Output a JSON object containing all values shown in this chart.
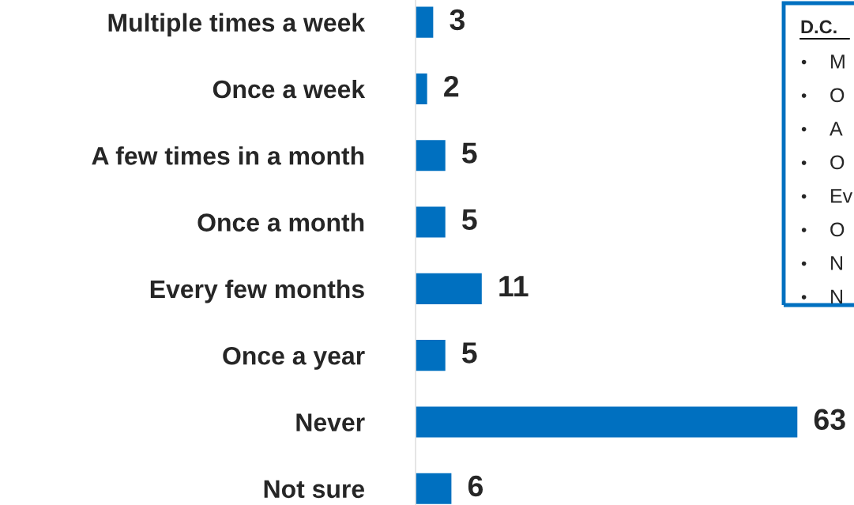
{
  "chart_data": {
    "type": "bar",
    "orientation": "horizontal",
    "data_labels": true,
    "color": "#0070c0",
    "categories": [
      "Multiple times a week",
      "Once a week",
      "A few times in a month",
      "Once a month",
      "Every few months",
      "Once a year",
      "Never",
      "Not sure"
    ],
    "values": [
      3,
      2,
      5,
      5,
      11,
      5,
      63,
      6
    ],
    "annotations": [
      "D.C.",
      "• M",
      "• O",
      "• A",
      "• O",
      "• Ev",
      "• O",
      "• N",
      "• N"
    ]
  }
}
